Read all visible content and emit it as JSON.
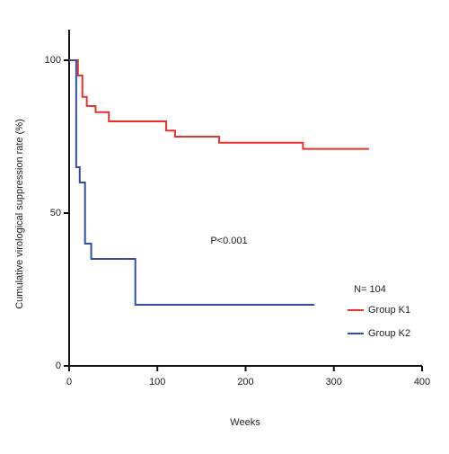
{
  "chart_data": {
    "type": "step",
    "y_label": "Cumulative virological suppression rate (%)",
    "x_label": "Weeks",
    "annotation": "P<0.001",
    "legend_title": "N= 104",
    "xlim": [
      0,
      400
    ],
    "xticks": [
      0,
      100,
      200,
      300,
      400
    ],
    "ylim": [
      0,
      110
    ],
    "yticks": [
      0,
      50,
      100
    ],
    "series": [
      {
        "name": "Group K1",
        "color": "#e8332a",
        "x": [
          0,
          10,
          15,
          20,
          30,
          45,
          100,
          110,
          120,
          165,
          170,
          265,
          340
        ],
        "values": [
          100,
          95,
          88,
          85,
          83,
          80,
          80,
          77,
          75,
          75,
          73,
          71,
          71
        ]
      },
      {
        "name": "Group K2",
        "color": "#2f4fa8",
        "x": [
          0,
          8,
          12,
          18,
          25,
          72,
          75,
          278
        ],
        "values": [
          100,
          65,
          60,
          40,
          35,
          35,
          20,
          20
        ]
      }
    ]
  }
}
